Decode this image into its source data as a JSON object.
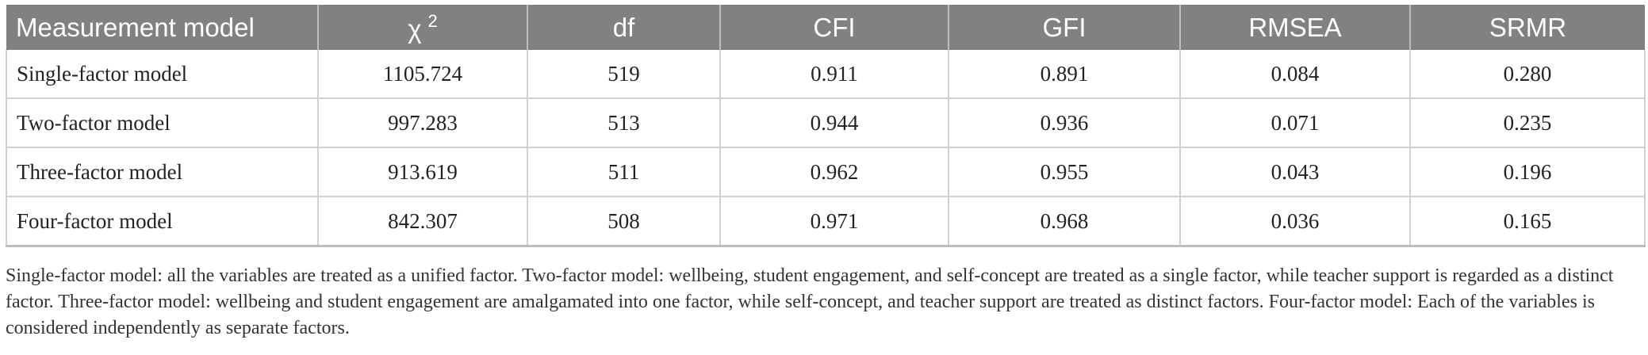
{
  "table": {
    "headers": [
      "Measurement model",
      "χ",
      "df",
      "CFI",
      "GFI",
      "RMSEA",
      "SRMR"
    ],
    "chi_superscript": "2",
    "rows": [
      [
        "Single-factor model",
        "1105.724",
        "519",
        "0.911",
        "0.891",
        "0.084",
        "0.280"
      ],
      [
        "Two-factor model",
        "997.283",
        "513",
        "0.944",
        "0.936",
        "0.071",
        "0.235"
      ],
      [
        "Three-factor model",
        "913.619",
        "511",
        "0.962",
        "0.955",
        "0.043",
        "0.196"
      ],
      [
        "Four-factor model",
        "842.307",
        "508",
        "0.971",
        "0.968",
        "0.036",
        "0.165"
      ]
    ]
  },
  "note": "Single-factor model: all the variables are treated as a unified factor. Two-factor model: wellbeing, student engagement, and self-concept are treated as a single factor, while teacher support is regarded as a distinct factor. Three-factor model: wellbeing and student engagement are amalgamated into one factor, while self-concept, and teacher support are treated as distinct factors. Four-factor model: Each of the variables is considered independently as separate factors.",
  "colors": {
    "header_bg": "#818181",
    "header_text": "#ffffff",
    "grid": "#cfcfcf"
  }
}
